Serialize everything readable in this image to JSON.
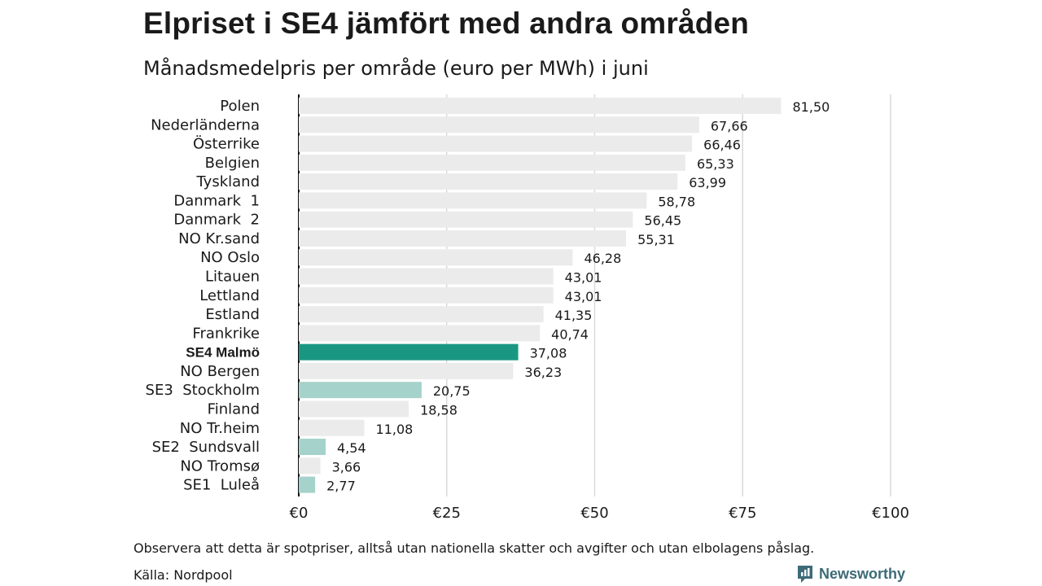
{
  "header": {
    "title": "Elpriset i SE4 jämfört med andra områden",
    "subtitle": "Månadsmedelpris per område (euro per MWh) i juni"
  },
  "footer": {
    "note": "Observera att detta är spotpriser, alltså utan nationella skatter och avgifter och utan elbolagens påslag.",
    "source": "Källa: Nordpool",
    "brand": "Newsworthy"
  },
  "chart_data": {
    "type": "bar",
    "orientation": "horizontal",
    "title": "Elpriset i SE4 jämfört med andra områden",
    "subtitle": "Månadsmedelpris per område (euro per MWh) i juni",
    "categories": [
      "Polen",
      "Nederländerna",
      "Österrike",
      "Belgien",
      "Tyskland",
      "Danmark  1",
      "Danmark  2",
      "NO Kr.sand",
      "NO Oslo",
      "Litauen",
      "Lettland",
      "Estland",
      "Frankrike",
      "SE4 Malmö",
      "NO Bergen",
      "SE3  Stockholm",
      "Finland",
      "NO Tr.heim",
      "SE2  Sundsvall",
      "NO Tromsø",
      "SE1  Luleå"
    ],
    "values": [
      81.5,
      67.66,
      66.46,
      65.33,
      63.99,
      58.78,
      56.45,
      55.31,
      46.28,
      43.01,
      43.01,
      41.35,
      40.74,
      37.08,
      36.23,
      20.75,
      18.58,
      11.08,
      4.54,
      3.66,
      2.77
    ],
    "value_labels": [
      "81,50",
      "67,66",
      "66,46",
      "65,33",
      "63,99",
      "58,78",
      "56,45",
      "55,31",
      "46,28",
      "43,01",
      "43,01",
      "41,35",
      "40,74",
      "37,08",
      "36,23",
      "20,75",
      "18,58",
      "11,08",
      "4,54",
      "3,66",
      "2,77"
    ],
    "highlight": [
      "normal",
      "normal",
      "normal",
      "normal",
      "normal",
      "normal",
      "normal",
      "normal",
      "normal",
      "normal",
      "normal",
      "normal",
      "normal",
      "main",
      "normal",
      "swedish",
      "normal",
      "normal",
      "swedish",
      "normal",
      "swedish"
    ],
    "xlim": [
      0,
      100
    ],
    "xticks": [
      0,
      25,
      50,
      75,
      100
    ],
    "xtick_labels": [
      "€0",
      "€25",
      "€50",
      "€75",
      "€100"
    ],
    "grid": true,
    "colors": {
      "normal": "#ebebeb",
      "main": "#1a9783",
      "swedish": "#a5d2ca",
      "grid": "#d9d9d9",
      "axis": "#111111"
    }
  }
}
